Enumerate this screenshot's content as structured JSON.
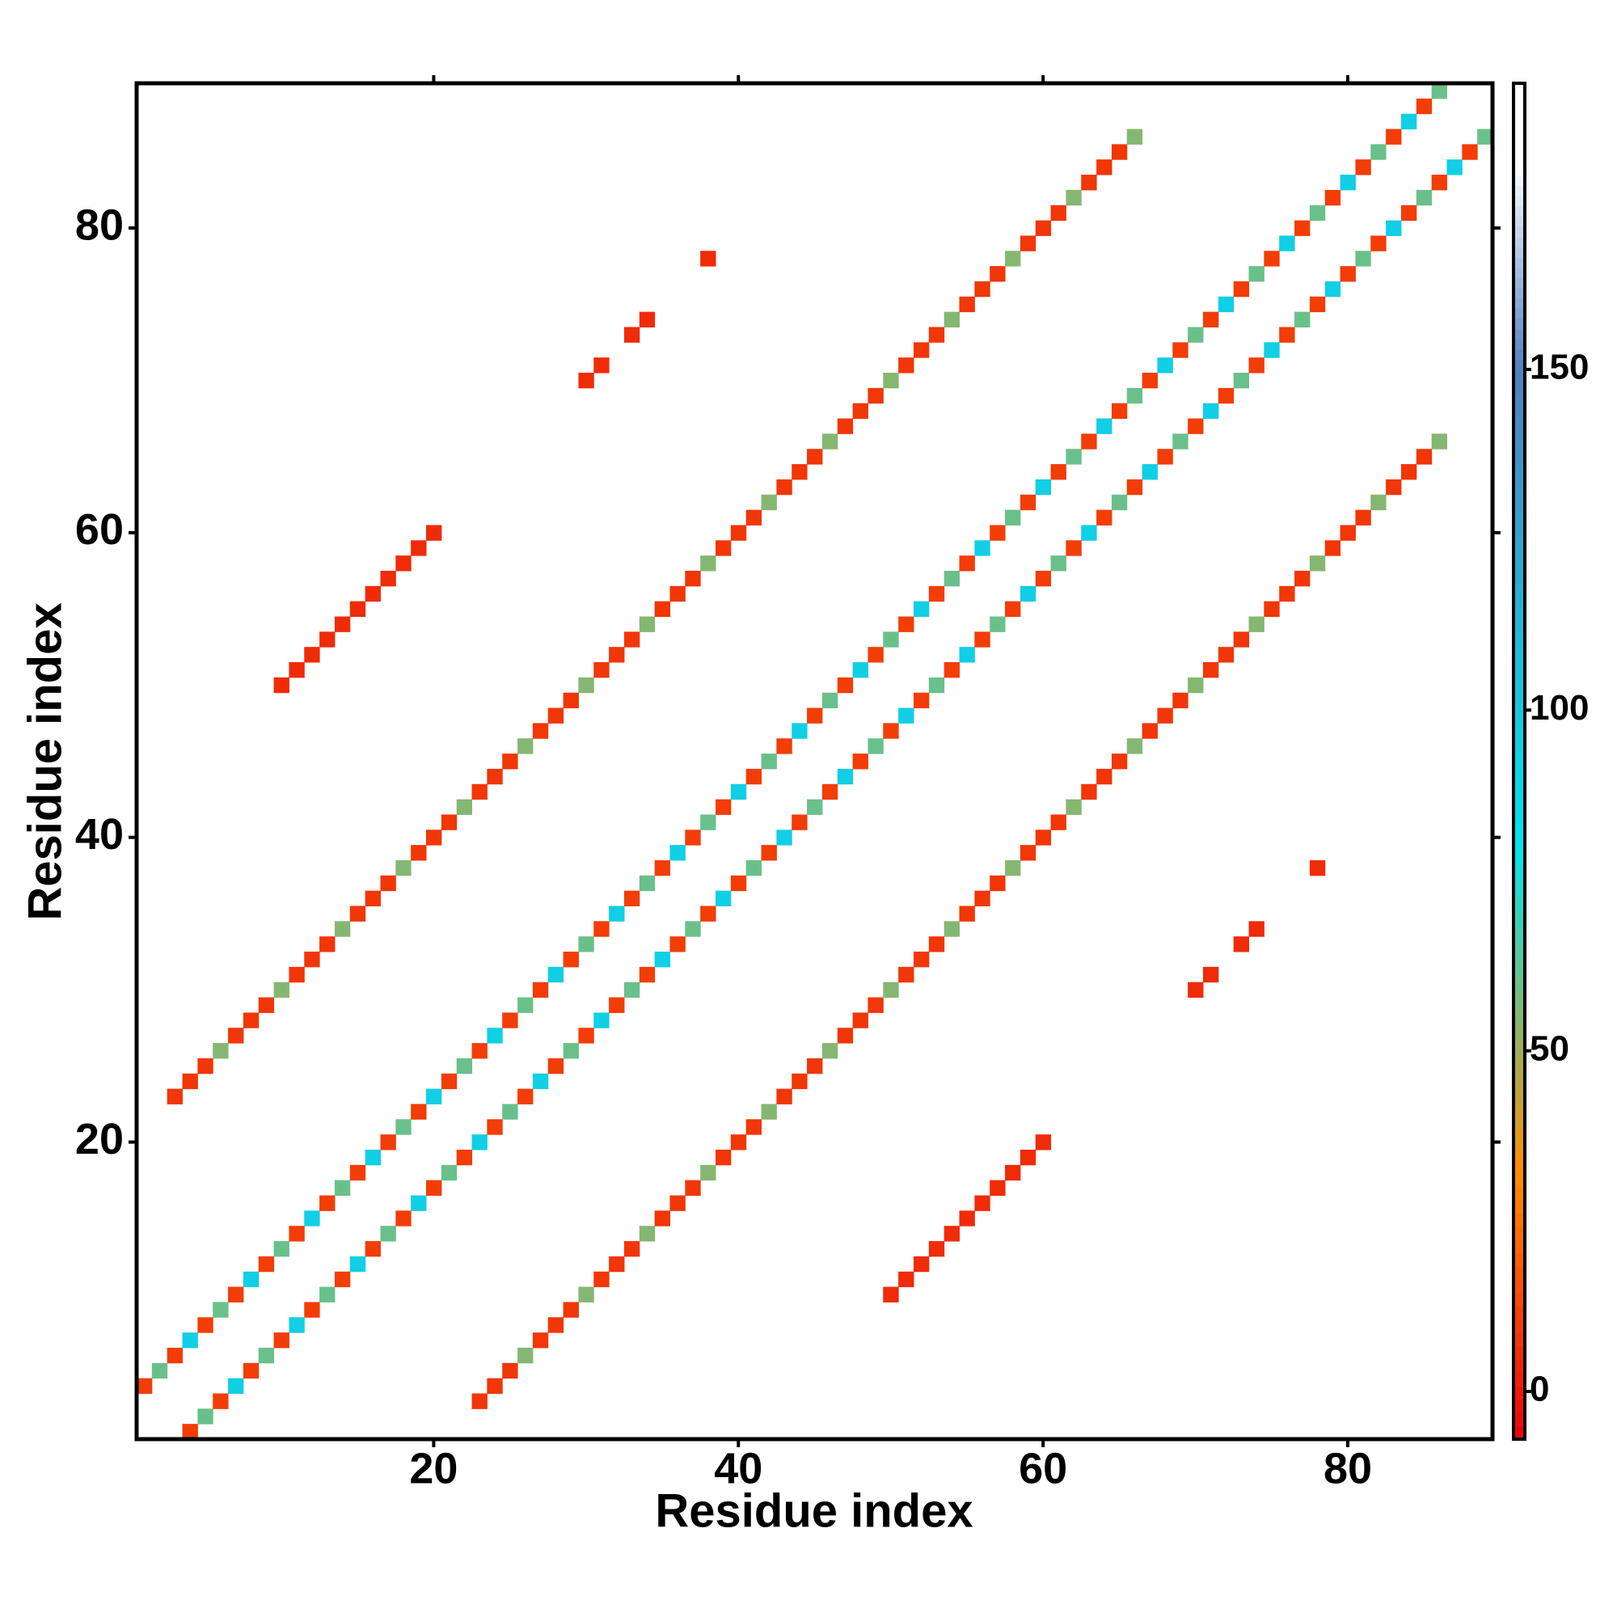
{
  "chart_data": {
    "type": "heatmap",
    "x_label": "Residue index",
    "y_label": "Residue index",
    "xlim": [
      0.5,
      89.5
    ],
    "ylim": [
      0.5,
      89.5
    ],
    "xticks": [
      20,
      40,
      60,
      80
    ],
    "yticks": [
      20,
      40,
      60,
      80
    ],
    "colorbar": {
      "lim": [
        -7,
        192
      ],
      "ticks": [
        0,
        50,
        100,
        150
      ],
      "scale": [
        [
          -7,
          "#e8000b"
        ],
        [
          32,
          "#ff8c00"
        ],
        [
          80,
          "#00e5ee"
        ],
        [
          150,
          "#4f7fbf"
        ],
        [
          180,
          "#ffffff"
        ],
        [
          192,
          "#ffffff"
        ]
      ]
    },
    "cells": [
      [
        1,
        4,
        10
      ],
      [
        2,
        5,
        60
      ],
      [
        3,
        6,
        10
      ],
      [
        4,
        7,
        95
      ],
      [
        5,
        8,
        10
      ],
      [
        6,
        9,
        60
      ],
      [
        7,
        10,
        10
      ],
      [
        8,
        11,
        95
      ],
      [
        9,
        12,
        10
      ],
      [
        10,
        13,
        60
      ],
      [
        11,
        14,
        10
      ],
      [
        12,
        15,
        95
      ],
      [
        13,
        16,
        10
      ],
      [
        14,
        17,
        60
      ],
      [
        15,
        18,
        10
      ],
      [
        16,
        19,
        95
      ],
      [
        17,
        20,
        10
      ],
      [
        18,
        21,
        60
      ],
      [
        19,
        22,
        10
      ],
      [
        20,
        23,
        95
      ],
      [
        21,
        24,
        10
      ],
      [
        22,
        25,
        60
      ],
      [
        23,
        26,
        10
      ],
      [
        24,
        27,
        95
      ],
      [
        25,
        28,
        10
      ],
      [
        26,
        29,
        60
      ],
      [
        27,
        30,
        10
      ],
      [
        28,
        31,
        95
      ],
      [
        29,
        32,
        10
      ],
      [
        30,
        33,
        60
      ],
      [
        31,
        34,
        10
      ],
      [
        32,
        35,
        95
      ],
      [
        33,
        36,
        10
      ],
      [
        34,
        37,
        60
      ],
      [
        35,
        38,
        10
      ],
      [
        36,
        39,
        95
      ],
      [
        37,
        40,
        10
      ],
      [
        38,
        41,
        60
      ],
      [
        39,
        42,
        10
      ],
      [
        40,
        43,
        95
      ],
      [
        41,
        44,
        10
      ],
      [
        42,
        45,
        60
      ],
      [
        43,
        46,
        10
      ],
      [
        44,
        47,
        95
      ],
      [
        45,
        48,
        10
      ],
      [
        46,
        49,
        60
      ],
      [
        47,
        50,
        10
      ],
      [
        48,
        51,
        95
      ],
      [
        49,
        52,
        10
      ],
      [
        50,
        53,
        60
      ],
      [
        51,
        54,
        10
      ],
      [
        52,
        55,
        95
      ],
      [
        53,
        56,
        10
      ],
      [
        54,
        57,
        60
      ],
      [
        55,
        58,
        10
      ],
      [
        56,
        59,
        95
      ],
      [
        57,
        60,
        10
      ],
      [
        58,
        61,
        60
      ],
      [
        59,
        62,
        10
      ],
      [
        60,
        63,
        95
      ],
      [
        61,
        64,
        10
      ],
      [
        62,
        65,
        60
      ],
      [
        63,
        66,
        10
      ],
      [
        64,
        67,
        95
      ],
      [
        65,
        68,
        10
      ],
      [
        66,
        69,
        60
      ],
      [
        67,
        70,
        10
      ],
      [
        68,
        71,
        95
      ],
      [
        69,
        72,
        10
      ],
      [
        70,
        73,
        60
      ],
      [
        71,
        74,
        10
      ],
      [
        72,
        75,
        95
      ],
      [
        73,
        76,
        10
      ],
      [
        74,
        77,
        60
      ],
      [
        75,
        78,
        10
      ],
      [
        76,
        79,
        95
      ],
      [
        77,
        80,
        10
      ],
      [
        78,
        81,
        60
      ],
      [
        79,
        82,
        10
      ],
      [
        80,
        83,
        95
      ],
      [
        81,
        84,
        10
      ],
      [
        82,
        85,
        60
      ],
      [
        83,
        86,
        10
      ],
      [
        84,
        87,
        95
      ],
      [
        85,
        88,
        10
      ],
      [
        86,
        89,
        60
      ],
      [
        4,
        1,
        10
      ],
      [
        5,
        2,
        60
      ],
      [
        6,
        3,
        10
      ],
      [
        7,
        4,
        95
      ],
      [
        8,
        5,
        10
      ],
      [
        9,
        6,
        60
      ],
      [
        10,
        7,
        10
      ],
      [
        11,
        8,
        95
      ],
      [
        12,
        9,
        10
      ],
      [
        13,
        10,
        60
      ],
      [
        14,
        11,
        10
      ],
      [
        15,
        12,
        95
      ],
      [
        16,
        13,
        10
      ],
      [
        17,
        14,
        60
      ],
      [
        18,
        15,
        10
      ],
      [
        19,
        16,
        95
      ],
      [
        20,
        17,
        10
      ],
      [
        21,
        18,
        60
      ],
      [
        22,
        19,
        10
      ],
      [
        23,
        20,
        95
      ],
      [
        24,
        21,
        10
      ],
      [
        25,
        22,
        60
      ],
      [
        26,
        23,
        10
      ],
      [
        27,
        24,
        95
      ],
      [
        28,
        25,
        10
      ],
      [
        29,
        26,
        60
      ],
      [
        30,
        27,
        10
      ],
      [
        31,
        28,
        95
      ],
      [
        32,
        29,
        10
      ],
      [
        33,
        30,
        60
      ],
      [
        34,
        31,
        10
      ],
      [
        35,
        32,
        95
      ],
      [
        36,
        33,
        10
      ],
      [
        37,
        34,
        60
      ],
      [
        38,
        35,
        10
      ],
      [
        39,
        36,
        95
      ],
      [
        40,
        37,
        10
      ],
      [
        41,
        38,
        60
      ],
      [
        42,
        39,
        10
      ],
      [
        43,
        40,
        95
      ],
      [
        44,
        41,
        10
      ],
      [
        45,
        42,
        60
      ],
      [
        46,
        43,
        10
      ],
      [
        47,
        44,
        95
      ],
      [
        48,
        45,
        10
      ],
      [
        49,
        46,
        60
      ],
      [
        50,
        47,
        10
      ],
      [
        51,
        48,
        95
      ],
      [
        52,
        49,
        10
      ],
      [
        53,
        50,
        60
      ],
      [
        54,
        51,
        10
      ],
      [
        55,
        52,
        95
      ],
      [
        56,
        53,
        10
      ],
      [
        57,
        54,
        60
      ],
      [
        58,
        55,
        10
      ],
      [
        59,
        56,
        95
      ],
      [
        60,
        57,
        10
      ],
      [
        61,
        58,
        60
      ],
      [
        62,
        59,
        10
      ],
      [
        63,
        60,
        95
      ],
      [
        64,
        61,
        10
      ],
      [
        65,
        62,
        60
      ],
      [
        66,
        63,
        10
      ],
      [
        67,
        64,
        95
      ],
      [
        68,
        65,
        10
      ],
      [
        69,
        66,
        60
      ],
      [
        70,
        67,
        10
      ],
      [
        71,
        68,
        95
      ],
      [
        72,
        69,
        10
      ],
      [
        73,
        70,
        60
      ],
      [
        74,
        71,
        10
      ],
      [
        75,
        72,
        95
      ],
      [
        76,
        73,
        10
      ],
      [
        77,
        74,
        60
      ],
      [
        78,
        75,
        10
      ],
      [
        79,
        76,
        95
      ],
      [
        80,
        77,
        10
      ],
      [
        81,
        78,
        60
      ],
      [
        82,
        79,
        10
      ],
      [
        83,
        80,
        95
      ],
      [
        84,
        81,
        10
      ],
      [
        85,
        82,
        60
      ],
      [
        86,
        83,
        10
      ],
      [
        87,
        84,
        95
      ],
      [
        88,
        85,
        10
      ],
      [
        89,
        86,
        60
      ],
      [
        3,
        23,
        8
      ],
      [
        4,
        24,
        8
      ],
      [
        5,
        25,
        8
      ],
      [
        6,
        26,
        55
      ],
      [
        7,
        27,
        8
      ],
      [
        8,
        28,
        8
      ],
      [
        9,
        29,
        8
      ],
      [
        10,
        30,
        55
      ],
      [
        11,
        31,
        8
      ],
      [
        12,
        32,
        8
      ],
      [
        13,
        33,
        8
      ],
      [
        14,
        34,
        55
      ],
      [
        15,
        35,
        8
      ],
      [
        16,
        36,
        8
      ],
      [
        17,
        37,
        8
      ],
      [
        18,
        38,
        55
      ],
      [
        19,
        39,
        8
      ],
      [
        20,
        40,
        8
      ],
      [
        21,
        41,
        8
      ],
      [
        22,
        42,
        55
      ],
      [
        23,
        43,
        8
      ],
      [
        24,
        44,
        8
      ],
      [
        25,
        45,
        8
      ],
      [
        26,
        46,
        55
      ],
      [
        27,
        47,
        8
      ],
      [
        28,
        48,
        8
      ],
      [
        29,
        49,
        8
      ],
      [
        30,
        50,
        55
      ],
      [
        31,
        51,
        8
      ],
      [
        32,
        52,
        8
      ],
      [
        33,
        53,
        8
      ],
      [
        34,
        54,
        55
      ],
      [
        35,
        55,
        8
      ],
      [
        36,
        56,
        8
      ],
      [
        37,
        57,
        8
      ],
      [
        38,
        58,
        55
      ],
      [
        39,
        59,
        8
      ],
      [
        40,
        60,
        8
      ],
      [
        41,
        61,
        8
      ],
      [
        42,
        62,
        55
      ],
      [
        43,
        63,
        8
      ],
      [
        44,
        64,
        8
      ],
      [
        45,
        65,
        8
      ],
      [
        46,
        66,
        55
      ],
      [
        47,
        67,
        8
      ],
      [
        48,
        68,
        8
      ],
      [
        49,
        69,
        8
      ],
      [
        50,
        70,
        55
      ],
      [
        51,
        71,
        8
      ],
      [
        52,
        72,
        8
      ],
      [
        53,
        73,
        8
      ],
      [
        54,
        74,
        55
      ],
      [
        55,
        75,
        8
      ],
      [
        56,
        76,
        8
      ],
      [
        57,
        77,
        8
      ],
      [
        58,
        78,
        55
      ],
      [
        59,
        79,
        8
      ],
      [
        60,
        80,
        8
      ],
      [
        61,
        81,
        8
      ],
      [
        62,
        82,
        55
      ],
      [
        63,
        83,
        8
      ],
      [
        64,
        84,
        8
      ],
      [
        65,
        85,
        8
      ],
      [
        66,
        86,
        55
      ],
      [
        23,
        3,
        8
      ],
      [
        24,
        4,
        8
      ],
      [
        25,
        5,
        8
      ],
      [
        26,
        6,
        55
      ],
      [
        27,
        7,
        8
      ],
      [
        28,
        8,
        8
      ],
      [
        29,
        9,
        8
      ],
      [
        30,
        10,
        55
      ],
      [
        31,
        11,
        8
      ],
      [
        32,
        12,
        8
      ],
      [
        33,
        13,
        8
      ],
      [
        34,
        14,
        55
      ],
      [
        35,
        15,
        8
      ],
      [
        36,
        16,
        8
      ],
      [
        37,
        17,
        8
      ],
      [
        38,
        18,
        55
      ],
      [
        39,
        19,
        8
      ],
      [
        40,
        20,
        8
      ],
      [
        41,
        21,
        8
      ],
      [
        42,
        22,
        55
      ],
      [
        43,
        23,
        8
      ],
      [
        44,
        24,
        8
      ],
      [
        45,
        25,
        8
      ],
      [
        46,
        26,
        55
      ],
      [
        47,
        27,
        8
      ],
      [
        48,
        28,
        8
      ],
      [
        49,
        29,
        8
      ],
      [
        50,
        30,
        55
      ],
      [
        51,
        31,
        8
      ],
      [
        52,
        32,
        8
      ],
      [
        53,
        33,
        8
      ],
      [
        54,
        34,
        55
      ],
      [
        55,
        35,
        8
      ],
      [
        56,
        36,
        8
      ],
      [
        57,
        37,
        8
      ],
      [
        58,
        38,
        55
      ],
      [
        59,
        39,
        8
      ],
      [
        60,
        40,
        8
      ],
      [
        61,
        41,
        8
      ],
      [
        62,
        42,
        55
      ],
      [
        63,
        43,
        8
      ],
      [
        64,
        44,
        8
      ],
      [
        65,
        45,
        8
      ],
      [
        66,
        46,
        55
      ],
      [
        67,
        47,
        8
      ],
      [
        68,
        48,
        8
      ],
      [
        69,
        49,
        8
      ],
      [
        70,
        50,
        55
      ],
      [
        71,
        51,
        8
      ],
      [
        72,
        52,
        8
      ],
      [
        73,
        53,
        8
      ],
      [
        74,
        54,
        55
      ],
      [
        75,
        55,
        8
      ],
      [
        76,
        56,
        8
      ],
      [
        77,
        57,
        8
      ],
      [
        78,
        58,
        55
      ],
      [
        79,
        59,
        8
      ],
      [
        80,
        60,
        8
      ],
      [
        81,
        61,
        8
      ],
      [
        82,
        62,
        55
      ],
      [
        83,
        63,
        8
      ],
      [
        84,
        64,
        8
      ],
      [
        85,
        65,
        8
      ],
      [
        86,
        66,
        55
      ],
      [
        10,
        50,
        5
      ],
      [
        11,
        51,
        5
      ],
      [
        12,
        52,
        5
      ],
      [
        13,
        53,
        5
      ],
      [
        14,
        54,
        5
      ],
      [
        15,
        55,
        5
      ],
      [
        16,
        56,
        5
      ],
      [
        17,
        57,
        5
      ],
      [
        18,
        58,
        5
      ],
      [
        19,
        59,
        5
      ],
      [
        20,
        60,
        5
      ],
      [
        50,
        10,
        5
      ],
      [
        51,
        11,
        5
      ],
      [
        52,
        12,
        5
      ],
      [
        53,
        13,
        5
      ],
      [
        54,
        14,
        5
      ],
      [
        55,
        15,
        5
      ],
      [
        56,
        16,
        5
      ],
      [
        57,
        17,
        5
      ],
      [
        58,
        18,
        5
      ],
      [
        59,
        19,
        5
      ],
      [
        60,
        20,
        5
      ],
      [
        30,
        70,
        5
      ],
      [
        31,
        71,
        5
      ],
      [
        33,
        73,
        5
      ],
      [
        34,
        74,
        5
      ],
      [
        38,
        78,
        5
      ],
      [
        70,
        30,
        5
      ],
      [
        71,
        31,
        5
      ],
      [
        73,
        33,
        5
      ],
      [
        74,
        34,
        5
      ],
      [
        78,
        38,
        5
      ]
    ]
  }
}
